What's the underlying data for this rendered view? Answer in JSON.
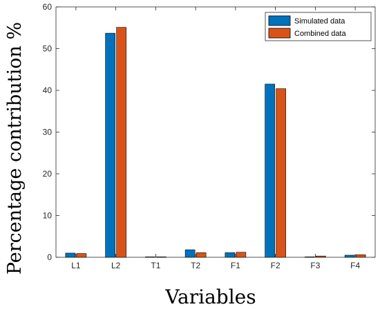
{
  "chart_data": {
    "type": "bar",
    "title": "",
    "xlabel": "Variables",
    "ylabel": "Percentage contribution %",
    "categories": [
      "L1",
      "L2",
      "T1",
      "T2",
      "F1",
      "F2",
      "F3",
      "F4"
    ],
    "series": [
      {
        "name": "Simulated data",
        "color": "#0072BD",
        "values": [
          1.0,
          53.7,
          0.1,
          1.8,
          1.1,
          41.5,
          0.1,
          0.5
        ]
      },
      {
        "name": "Combined data",
        "color": "#D95319",
        "values": [
          0.9,
          55.1,
          0.1,
          1.1,
          1.2,
          40.4,
          0.3,
          0.6
        ]
      }
    ],
    "ylim": [
      0,
      60
    ],
    "yticks": [
      0,
      10,
      20,
      30,
      40,
      50,
      60
    ],
    "grid": false,
    "legend_position": "top-right"
  }
}
